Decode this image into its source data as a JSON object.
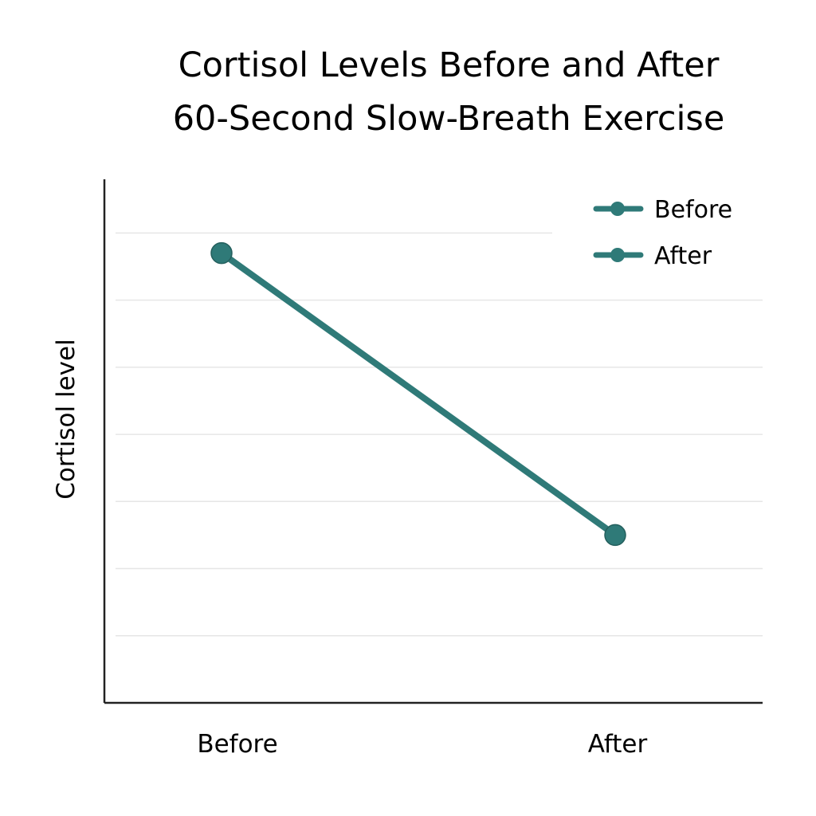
{
  "chart_data": {
    "type": "line",
    "title_lines": [
      "Cortisol Levels Before and After",
      "60-Second Slow-Breath Exercise"
    ],
    "xlabel": "",
    "ylabel": "Cortisol level",
    "categories": [
      "Before",
      "After"
    ],
    "series": [
      {
        "values": [
          6.7,
          2.5
        ]
      }
    ],
    "y_units_note": "no y tick labels printed; values in gridline steps",
    "ylim": [
      0,
      7.8
    ],
    "gridlines": [
      1,
      2,
      3,
      4,
      5,
      6,
      7
    ],
    "grid": true,
    "legend": {
      "position": "top-right",
      "entries": [
        "Before",
        "After"
      ]
    },
    "color": "#2f7a78"
  }
}
